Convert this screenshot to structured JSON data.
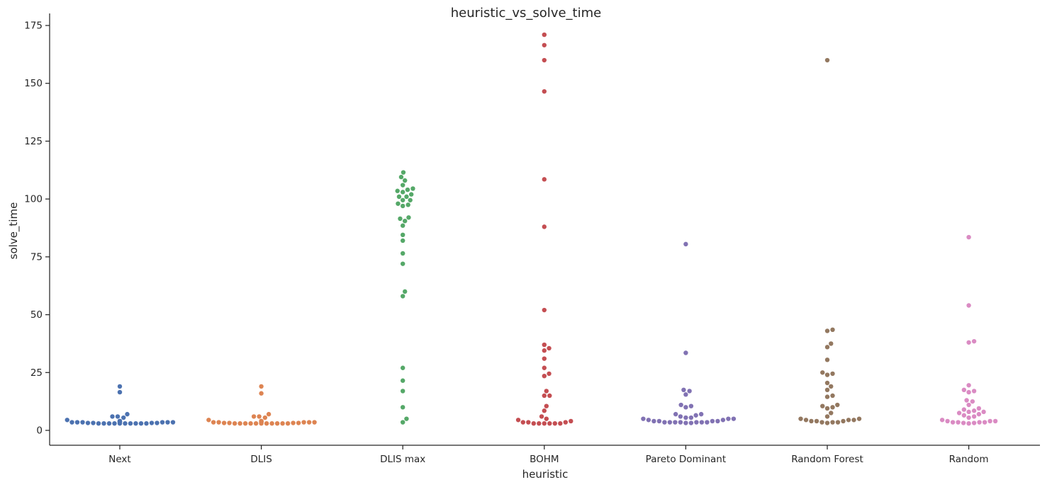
{
  "chart_data": {
    "type": "scatter",
    "subtype": "swarm",
    "title": "heuristic_vs_solve_time",
    "xlabel": "heuristic",
    "ylabel": "solve_time",
    "ylim": [
      -6,
      180
    ],
    "yticks": [
      0,
      25,
      50,
      75,
      100,
      125,
      150,
      175
    ],
    "grid": false,
    "categories": [
      "Next",
      "DLIS",
      "DLIS max",
      "BOHM",
      "Pareto Dominant",
      "Random Forest",
      "Random"
    ],
    "colors": [
      "#4c72b0",
      "#dd8452",
      "#55a868",
      "#c44e52",
      "#8172b3",
      "#937860",
      "#da8bc3"
    ],
    "series": [
      {
        "category": "Next",
        "values": [
          19,
          16.5,
          7,
          6,
          6,
          5.5,
          4.5,
          4,
          4,
          4,
          3.5,
          3.5,
          3.5,
          3.5,
          3.5,
          3.5,
          3.5,
          3.5,
          3.2,
          3.2,
          3.2,
          3.2,
          3,
          3,
          3,
          3,
          3,
          3,
          3,
          3,
          3,
          3
        ]
      },
      {
        "category": "DLIS",
        "values": [
          19,
          16,
          7,
          6,
          6,
          5.5,
          4.5,
          4,
          4,
          4,
          3.5,
          3.5,
          3.5,
          3.5,
          3.5,
          3.5,
          3.5,
          3.2,
          3.2,
          3.2,
          3.2,
          3,
          3,
          3,
          3,
          3,
          3,
          3,
          3,
          3,
          3,
          3
        ]
      },
      {
        "category": "DLIS max",
        "values": [
          111.5,
          109.5,
          108,
          106,
          104.5,
          104,
          103.5,
          103,
          102,
          101,
          101,
          99.5,
          99.5,
          98,
          97.5,
          97,
          92,
          91.5,
          90.5,
          88.5,
          84.5,
          82,
          76.5,
          72,
          60,
          58,
          27,
          21.5,
          17,
          10,
          5,
          3.5
        ]
      },
      {
        "category": "BOHM",
        "values": [
          171,
          166.5,
          160,
          146.5,
          108.5,
          88,
          52,
          37,
          35.5,
          34.5,
          31,
          27,
          24.5,
          23.5,
          17,
          15,
          15,
          10.5,
          8.5,
          6,
          5,
          4.5,
          4,
          3.5,
          3.5,
          3.5,
          3,
          3,
          3,
          3,
          3,
          3
        ]
      },
      {
        "category": "Pareto Dominant",
        "values": [
          80.5,
          33.5,
          17.5,
          17,
          15.5,
          11,
          10.5,
          10,
          7,
          7,
          6.5,
          6,
          5.5,
          5.5,
          5,
          5,
          5,
          4.5,
          4.5,
          4,
          4,
          4,
          4,
          3.5,
          3.5,
          3.5,
          3.5,
          3.5,
          3.5,
          3.5,
          3.2,
          3.2
        ]
      },
      {
        "category": "Random Forest",
        "values": [
          160,
          43.5,
          43,
          37.5,
          36,
          30.5,
          25,
          24.5,
          24,
          20.5,
          19,
          17.5,
          15,
          14.5,
          11,
          10.5,
          10,
          9.5,
          7.5,
          6,
          5,
          5,
          4.5,
          4.5,
          4.5,
          4,
          4,
          4,
          3.5,
          3.5,
          3.5,
          3.2
        ]
      },
      {
        "category": "Random",
        "values": [
          83.5,
          54,
          38.5,
          38,
          19.5,
          17.5,
          17,
          16.5,
          13,
          12.5,
          11,
          9.5,
          9,
          8.5,
          8,
          8,
          7.5,
          7,
          6.5,
          6,
          5.5,
          4.5,
          4,
          4,
          4,
          3.5,
          3.5,
          3.5,
          3.5,
          3.2,
          3.2,
          3
        ]
      }
    ]
  }
}
